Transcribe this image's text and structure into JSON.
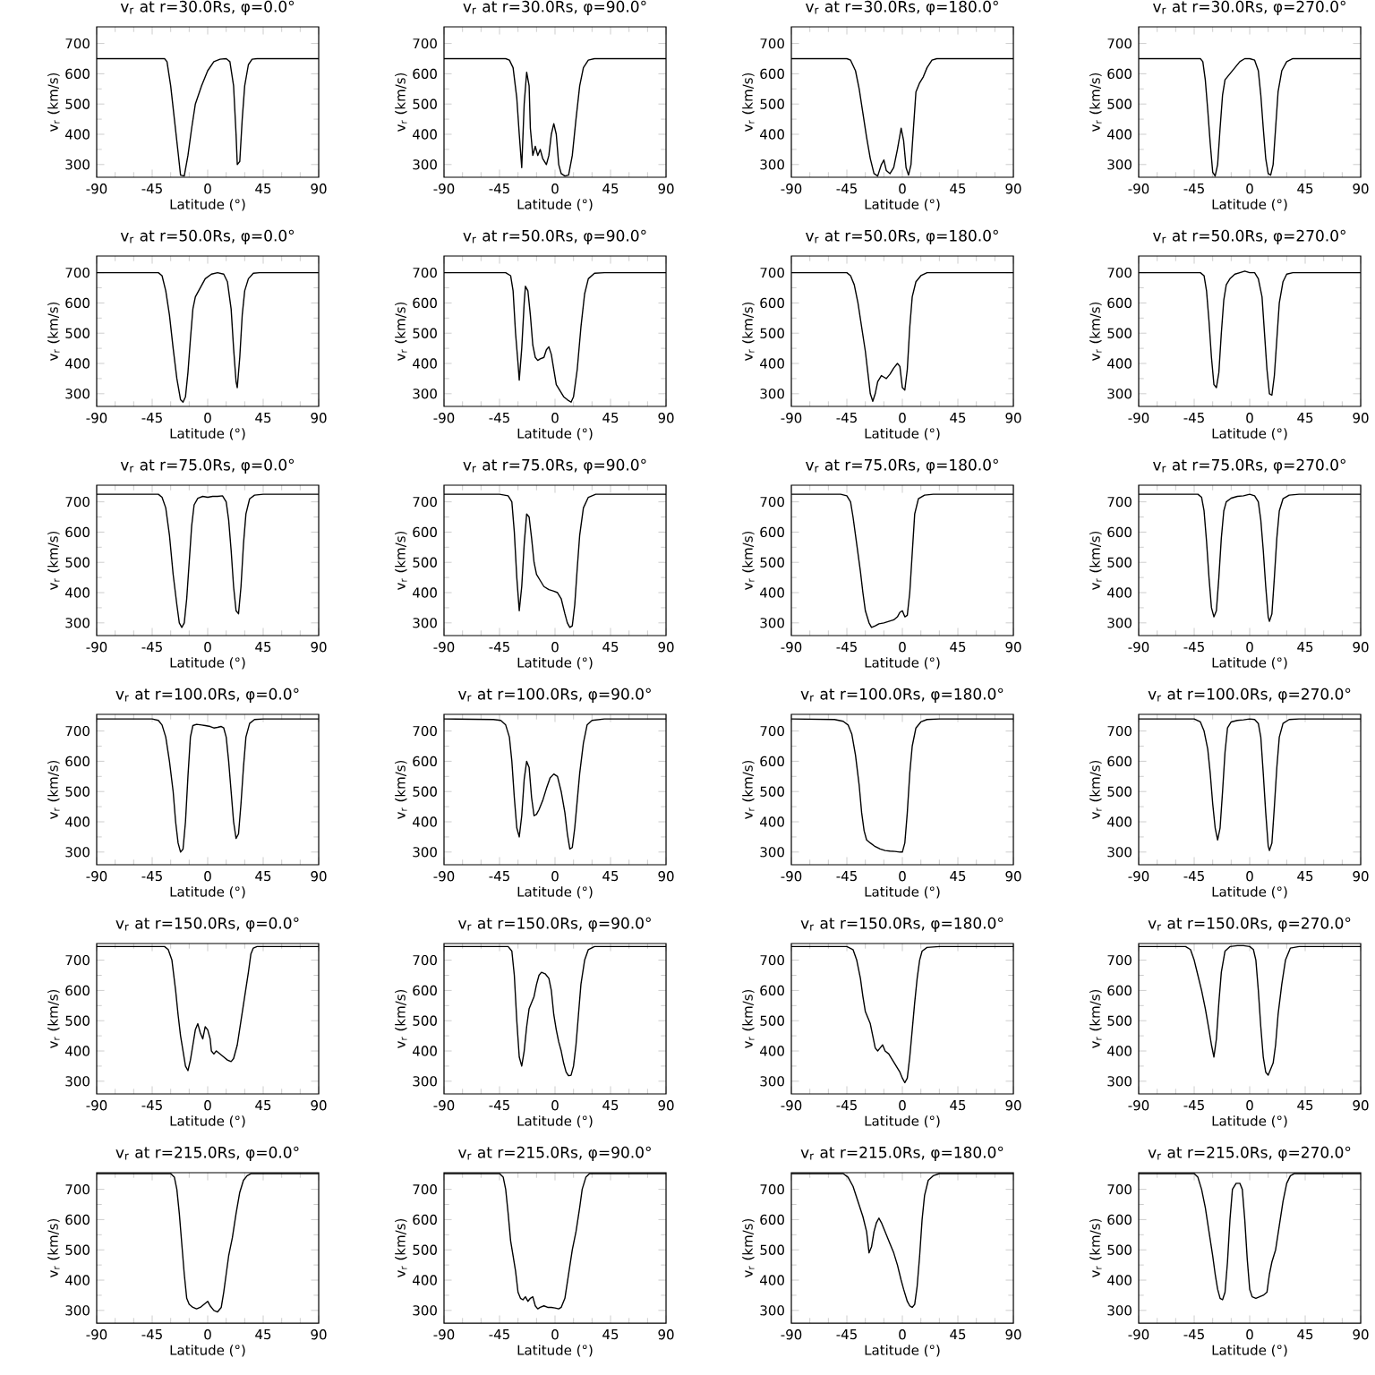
{
  "chart_data": [
    {
      "type": "line",
      "title": "v$_{r}$ at r=30.0Rs, φ=0.0°",
      "xlabel": "Latitude (°)",
      "ylabel": "v$_{r}$ (km/s)",
      "color": "#000000",
      "xlim": [
        -90,
        90
      ],
      "ylim": [
        258,
        755
      ],
      "xticks": [
        -90,
        -45,
        0,
        45,
        90
      ],
      "yticks": [
        300,
        400,
        500,
        600,
        700
      ],
      "x": [
        -90,
        -35,
        -33,
        -30,
        -27,
        -24,
        -22,
        -19,
        -16,
        -13,
        -10,
        -5,
        0,
        5,
        10,
        15,
        18,
        21,
        23,
        24,
        26,
        28,
        30,
        33,
        36,
        40,
        90
      ],
      "values": [
        650,
        650,
        640,
        560,
        450,
        340,
        265,
        262,
        330,
        420,
        500,
        560,
        610,
        640,
        648,
        650,
        640,
        560,
        400,
        300,
        310,
        450,
        560,
        630,
        648,
        650,
        650
      ]
    },
    {
      "type": "line",
      "title": "v$_{r}$ at r=30.0Rs, φ=90.0°",
      "xlabel": "Latitude (°)",
      "ylabel": "v$_{r}$ (km/s)",
      "color": "#000000",
      "xlim": [
        -90,
        90
      ],
      "ylim": [
        258,
        755
      ],
      "xticks": [
        -90,
        -45,
        0,
        45,
        90
      ],
      "yticks": [
        300,
        400,
        500,
        600,
        700
      ],
      "x": [
        -90,
        -40,
        -37,
        -34,
        -31,
        -29,
        -27,
        -25,
        -23,
        -21,
        -20,
        -18,
        -16,
        -14,
        -12,
        -10,
        -7,
        -5,
        -3,
        -1,
        1,
        3,
        5,
        8,
        11,
        14,
        17,
        20,
        23,
        27,
        32,
        90
      ],
      "values": [
        650,
        650,
        645,
        620,
        520,
        400,
        290,
        500,
        605,
        560,
        420,
        330,
        360,
        330,
        350,
        320,
        300,
        330,
        400,
        435,
        400,
        300,
        270,
        262,
        265,
        330,
        450,
        560,
        620,
        645,
        650,
        650
      ]
    },
    {
      "type": "line",
      "title": "v$_{r}$ at r=30.0Rs, φ=180.0°",
      "xlabel": "Latitude (°)",
      "ylabel": "v$_{r}$ (km/s)",
      "color": "#000000",
      "xlim": [
        -90,
        90
      ],
      "ylim": [
        258,
        755
      ],
      "xticks": [
        -90,
        -45,
        0,
        45,
        90
      ],
      "yticks": [
        300,
        400,
        500,
        600,
        700
      ],
      "x": [
        -90,
        -45,
        -42,
        -38,
        -35,
        -32,
        -29,
        -26,
        -23,
        -20,
        -17,
        -15,
        -13,
        -10,
        -7,
        -4,
        -1,
        1,
        3,
        5,
        7,
        9,
        11,
        14,
        17,
        20,
        24,
        28,
        90
      ],
      "values": [
        650,
        650,
        645,
        610,
        550,
        470,
        390,
        320,
        270,
        262,
        300,
        315,
        280,
        270,
        290,
        350,
        420,
        380,
        290,
        265,
        300,
        420,
        540,
        570,
        590,
        620,
        645,
        650,
        650
      ]
    },
    {
      "type": "line",
      "title": "v$_{r}$ at r=30.0Rs, φ=270.0°",
      "xlabel": "Latitude (°)",
      "ylabel": "v$_{r}$ (km/s)",
      "color": "#000000",
      "xlim": [
        -90,
        90
      ],
      "ylim": [
        258,
        755
      ],
      "xticks": [
        -90,
        -45,
        0,
        45,
        90
      ],
      "yticks": [
        300,
        400,
        500,
        600,
        700
      ],
      "x": [
        -90,
        -40,
        -38,
        -36,
        -34,
        -32,
        -30,
        -28,
        -26,
        -24,
        -22,
        -20,
        -16,
        -12,
        -8,
        -4,
        0,
        4,
        7,
        9,
        11,
        13,
        15,
        17,
        19,
        21,
        23,
        26,
        30,
        35,
        90
      ],
      "values": [
        650,
        650,
        640,
        580,
        480,
        370,
        275,
        262,
        300,
        420,
        530,
        580,
        600,
        620,
        640,
        650,
        650,
        645,
        610,
        530,
        420,
        320,
        270,
        265,
        300,
        420,
        540,
        610,
        640,
        650,
        650
      ]
    },
    {
      "type": "line",
      "title": "v$_{r}$ at r=50.0Rs, φ=0.0°",
      "xlabel": "Latitude (°)",
      "ylabel": "v$_{r}$ (km/s)",
      "color": "#000000",
      "xlim": [
        -90,
        90
      ],
      "ylim": [
        258,
        755
      ],
      "xticks": [
        -90,
        -45,
        0,
        45,
        90
      ],
      "yticks": [
        300,
        400,
        500,
        600,
        700
      ],
      "x": [
        -90,
        -40,
        -37,
        -34,
        -31,
        -28,
        -25,
        -22,
        -20,
        -18,
        -16,
        -14,
        -12,
        -10,
        -6,
        -2,
        3,
        8,
        13,
        16,
        19,
        21,
        23,
        24,
        26,
        28,
        30,
        33,
        37,
        42,
        90
      ],
      "values": [
        700,
        700,
        690,
        640,
        560,
        450,
        350,
        280,
        272,
        290,
        370,
        480,
        580,
        620,
        650,
        680,
        695,
        700,
        695,
        670,
        580,
        450,
        340,
        320,
        420,
        560,
        640,
        680,
        698,
        700,
        700
      ]
    },
    {
      "type": "line",
      "title": "v$_{r}$ at r=50.0Rs, φ=90.0°",
      "xlabel": "Latitude (°)",
      "ylabel": "v$_{r}$ (km/s)",
      "color": "#000000",
      "xlim": [
        -90,
        90
      ],
      "ylim": [
        258,
        755
      ],
      "xticks": [
        -90,
        -45,
        0,
        45,
        90
      ],
      "yticks": [
        300,
        400,
        500,
        600,
        700
      ],
      "x": [
        -90,
        -40,
        -36,
        -34,
        -32,
        -30,
        -29,
        -27,
        -25,
        -24,
        -22,
        -20,
        -18,
        -16,
        -14,
        -12,
        -9,
        -7,
        -5,
        -3,
        -1,
        1,
        4,
        7,
        10,
        13,
        15,
        18,
        21,
        24,
        27,
        32,
        40,
        90
      ],
      "values": [
        700,
        700,
        690,
        640,
        500,
        400,
        345,
        450,
        600,
        655,
        640,
        560,
        460,
        420,
        410,
        415,
        420,
        445,
        455,
        430,
        380,
        330,
        310,
        290,
        280,
        272,
        290,
        380,
        520,
        630,
        680,
        698,
        700,
        700
      ]
    },
    {
      "type": "line",
      "title": "v$_{r}$ at r=50.0Rs, φ=180.0°",
      "xlabel": "Latitude (°)",
      "ylabel": "v$_{r}$ (km/s)",
      "color": "#000000",
      "xlim": [
        -90,
        90
      ],
      "ylim": [
        258,
        755
      ],
      "xticks": [
        -90,
        -45,
        0,
        45,
        90
      ],
      "yticks": [
        300,
        400,
        500,
        600,
        700
      ],
      "x": [
        -90,
        -45,
        -42,
        -39,
        -36,
        -33,
        -30,
        -28,
        -26,
        -24,
        -22,
        -20,
        -17,
        -15,
        -13,
        -10,
        -7,
        -4,
        -2,
        0,
        2,
        4,
        6,
        8,
        11,
        15,
        20,
        90
      ],
      "values": [
        700,
        700,
        690,
        660,
        600,
        520,
        440,
        370,
        300,
        275,
        300,
        340,
        360,
        355,
        350,
        365,
        385,
        400,
        390,
        320,
        312,
        380,
        520,
        620,
        670,
        690,
        700,
        700
      ]
    },
    {
      "type": "line",
      "title": "v$_{r}$ at r=50.0Rs, φ=270.0°",
      "xlabel": "Latitude (°)",
      "ylabel": "v$_{r}$ (km/s)",
      "color": "#000000",
      "xlim": [
        -90,
        90
      ],
      "ylim": [
        258,
        755
      ],
      "xticks": [
        -90,
        -45,
        0,
        45,
        90
      ],
      "yticks": [
        300,
        400,
        500,
        600,
        700
      ],
      "x": [
        -90,
        -40,
        -37,
        -35,
        -33,
        -31,
        -29,
        -27,
        -25,
        -23,
        -21,
        -19,
        -16,
        -12,
        -8,
        -4,
        0,
        4,
        7,
        10,
        12,
        14,
        16,
        18,
        20,
        22,
        24,
        27,
        30,
        35,
        90
      ],
      "values": [
        700,
        700,
        690,
        640,
        540,
        420,
        330,
        320,
        370,
        500,
        610,
        660,
        680,
        695,
        700,
        705,
        700,
        700,
        680,
        620,
        500,
        380,
        300,
        295,
        360,
        480,
        600,
        670,
        695,
        700,
        700
      ]
    },
    {
      "type": "line",
      "title": "v$_{r}$ at r=75.0Rs, φ=0.0°",
      "xlabel": "Latitude (°)",
      "ylabel": "v$_{r}$ (km/s)",
      "color": "#000000",
      "xlim": [
        -90,
        90
      ],
      "ylim": [
        258,
        755
      ],
      "xticks": [
        -90,
        -45,
        0,
        45,
        90
      ],
      "yticks": [
        300,
        400,
        500,
        600,
        700
      ],
      "x": [
        -90,
        -40,
        -37,
        -34,
        -31,
        -28,
        -25,
        -23,
        -21,
        -19,
        -17,
        -15,
        -13,
        -11,
        -8,
        -4,
        0,
        4,
        8,
        12,
        15,
        17,
        19,
        21,
        23,
        25,
        27,
        29,
        31,
        34,
        38,
        45,
        90
      ],
      "values": [
        725,
        725,
        715,
        680,
        590,
        460,
        360,
        300,
        285,
        300,
        380,
        500,
        620,
        690,
        712,
        718,
        715,
        718,
        718,
        720,
        700,
        640,
        540,
        420,
        340,
        330,
        420,
        560,
        660,
        710,
        722,
        725,
        725
      ]
    },
    {
      "type": "line",
      "title": "v$_{r}$ at r=75.0Rs, φ=90.0°",
      "xlabel": "Latitude (°)",
      "ylabel": "v$_{r}$ (km/s)",
      "color": "#000000",
      "xlim": [
        -90,
        90
      ],
      "ylim": [
        258,
        755
      ],
      "xticks": [
        -90,
        -45,
        0,
        45,
        90
      ],
      "yticks": [
        300,
        400,
        500,
        600,
        700
      ],
      "x": [
        -90,
        -45,
        -38,
        -35,
        -33,
        -31,
        -29,
        -27,
        -25,
        -23,
        -21,
        -19,
        -17,
        -15,
        -12,
        -9,
        -5,
        -1,
        2,
        5,
        8,
        10,
        12,
        14,
        16,
        18,
        20,
        23,
        27,
        33,
        90
      ],
      "values": [
        725,
        725,
        720,
        700,
        600,
        450,
        340,
        420,
        560,
        660,
        650,
        580,
        500,
        460,
        440,
        420,
        410,
        405,
        400,
        380,
        330,
        300,
        285,
        290,
        360,
        480,
        590,
        680,
        715,
        725,
        725
      ]
    },
    {
      "type": "line",
      "title": "v$_{r}$ at r=75.0Rs, φ=180.0°",
      "xlabel": "Latitude (°)",
      "ylabel": "v$_{r}$ (km/s)",
      "color": "#000000",
      "xlim": [
        -90,
        90
      ],
      "ylim": [
        258,
        755
      ],
      "xticks": [
        -90,
        -45,
        0,
        45,
        90
      ],
      "yticks": [
        300,
        400,
        500,
        600,
        700
      ],
      "x": [
        -90,
        -50,
        -45,
        -42,
        -40,
        -37,
        -34,
        -32,
        -30,
        -27,
        -25,
        -22,
        -19,
        -15,
        -11,
        -7,
        -4,
        -2,
        0,
        2,
        4,
        6,
        8,
        10,
        13,
        18,
        25,
        90
      ],
      "values": [
        725,
        725,
        720,
        700,
        650,
        560,
        470,
        400,
        340,
        300,
        285,
        290,
        297,
        300,
        305,
        310,
        320,
        335,
        340,
        320,
        325,
        400,
        530,
        660,
        710,
        722,
        725,
        725
      ]
    },
    {
      "type": "line",
      "title": "v$_{r}$ at r=75.0Rs, φ=270.0°",
      "xlabel": "Latitude (°)",
      "ylabel": "v$_{r}$ (km/s)",
      "color": "#000000",
      "xlim": [
        -90,
        90
      ],
      "ylim": [
        258,
        755
      ],
      "xticks": [
        -90,
        -45,
        0,
        45,
        90
      ],
      "yticks": [
        300,
        400,
        500,
        600,
        700
      ],
      "x": [
        -90,
        -42,
        -39,
        -37,
        -35,
        -33,
        -31,
        -29,
        -27,
        -25,
        -23,
        -21,
        -19,
        -15,
        -10,
        -5,
        0,
        4,
        7,
        9,
        11,
        13,
        15,
        16,
        18,
        20,
        22,
        24,
        27,
        32,
        40,
        90
      ],
      "values": [
        725,
        725,
        715,
        670,
        570,
        450,
        350,
        320,
        340,
        450,
        580,
        670,
        700,
        712,
        718,
        720,
        725,
        720,
        700,
        640,
        540,
        420,
        320,
        305,
        330,
        450,
        580,
        670,
        710,
        722,
        725,
        725
      ]
    },
    {
      "type": "line",
      "title": "v$_{r}$ at r=100.0Rs, φ=0.0°",
      "xlabel": "Latitude (°)",
      "ylabel": "v$_{r}$ (km/s)",
      "color": "#000000",
      "xlim": [
        -90,
        90
      ],
      "ylim": [
        258,
        755
      ],
      "xticks": [
        -90,
        -45,
        0,
        45,
        90
      ],
      "yticks": [
        300,
        400,
        500,
        600,
        700
      ],
      "x": [
        -90,
        -45,
        -40,
        -37,
        -34,
        -31,
        -28,
        -26,
        -24,
        -22,
        -20,
        -18,
        -16,
        -14,
        -12,
        -9,
        -5,
        -2,
        2,
        5,
        8,
        11,
        13,
        15,
        17,
        19,
        21,
        23,
        25,
        27,
        29,
        31,
        34,
        38,
        45,
        90
      ],
      "values": [
        740,
        740,
        735,
        720,
        680,
        600,
        500,
        400,
        330,
        300,
        310,
        400,
        550,
        680,
        718,
        722,
        720,
        718,
        715,
        710,
        712,
        715,
        710,
        680,
        600,
        500,
        400,
        345,
        360,
        460,
        580,
        680,
        725,
        738,
        740,
        740
      ]
    },
    {
      "type": "line",
      "title": "v$_{r}$ at r=100.0Rs, φ=90.0°",
      "xlabel": "Latitude (°)",
      "ylabel": "v$_{r}$ (km/s)",
      "color": "#000000",
      "xlim": [
        -90,
        90
      ],
      "ylim": [
        258,
        755
      ],
      "xticks": [
        -90,
        -45,
        0,
        45,
        90
      ],
      "yticks": [
        300,
        400,
        500,
        600,
        700
      ],
      "x": [
        -90,
        -50,
        -44,
        -40,
        -37,
        -35,
        -33,
        -31,
        -29,
        -27,
        -25,
        -23,
        -21,
        -19,
        -17,
        -15,
        -13,
        -10,
        -7,
        -4,
        -1,
        2,
        5,
        8,
        10,
        12,
        14,
        16,
        18,
        20,
        23,
        26,
        30,
        40,
        90
      ],
      "values": [
        740,
        738,
        735,
        720,
        680,
        600,
        480,
        380,
        350,
        420,
        540,
        600,
        580,
        480,
        420,
        425,
        440,
        470,
        510,
        545,
        558,
        550,
        500,
        430,
        360,
        310,
        315,
        380,
        470,
        560,
        660,
        720,
        735,
        740,
        740
      ]
    },
    {
      "type": "line",
      "title": "v$_{r}$ at r=100.0Rs, φ=180.0°",
      "xlabel": "Latitude (°)",
      "ylabel": "v$_{r}$ (km/s)",
      "color": "#000000",
      "xlim": [
        -90,
        90
      ],
      "ylim": [
        258,
        755
      ],
      "xticks": [
        -90,
        -45,
        0,
        45,
        90
      ],
      "yticks": [
        300,
        400,
        500,
        600,
        700
      ],
      "x": [
        -90,
        -55,
        -48,
        -44,
        -41,
        -38,
        -35,
        -33,
        -31,
        -29,
        -26,
        -22,
        -18,
        -14,
        -10,
        -6,
        -2,
        0,
        2,
        4,
        6,
        8,
        11,
        15,
        20,
        30,
        90
      ],
      "values": [
        740,
        738,
        732,
        720,
        690,
        620,
        520,
        430,
        370,
        340,
        330,
        318,
        310,
        305,
        303,
        302,
        300,
        300,
        330,
        430,
        560,
        650,
        710,
        730,
        738,
        740,
        740
      ]
    },
    {
      "type": "line",
      "title": "v$_{r}$ at r=100.0Rs, φ=270.0°",
      "xlabel": "Latitude (°)",
      "ylabel": "v$_{r}$ (km/s)",
      "color": "#000000",
      "xlim": [
        -90,
        90
      ],
      "ylim": [
        258,
        755
      ],
      "xticks": [
        -90,
        -45,
        0,
        45,
        90
      ],
      "yticks": [
        300,
        400,
        500,
        600,
        700
      ],
      "x": [
        -90,
        -45,
        -40,
        -37,
        -34,
        -32,
        -30,
        -28,
        -26,
        -24,
        -22,
        -20,
        -18,
        -15,
        -10,
        -5,
        0,
        4,
        7,
        9,
        11,
        13,
        15,
        16,
        18,
        20,
        22,
        24,
        27,
        32,
        40,
        90
      ],
      "values": [
        740,
        740,
        730,
        700,
        640,
        560,
        460,
        380,
        340,
        380,
        500,
        630,
        710,
        730,
        735,
        737,
        740,
        738,
        725,
        680,
        560,
        430,
        320,
        305,
        330,
        450,
        580,
        680,
        725,
        738,
        740,
        740
      ]
    },
    {
      "type": "line",
      "title": "v$_{r}$ at r=150.0Rs, φ=0.0°",
      "xlabel": "Latitude (°)",
      "ylabel": "v$_{r}$ (km/s)",
      "color": "#000000",
      "xlim": [
        -90,
        90
      ],
      "ylim": [
        258,
        755
      ],
      "xticks": [
        -90,
        -45,
        0,
        45,
        90
      ],
      "yticks": [
        300,
        400,
        500,
        600,
        700
      ],
      "x": [
        -90,
        -35,
        -32,
        -29,
        -26,
        -24,
        -22,
        -20,
        -18,
        -16,
        -14,
        -12,
        -10,
        -8,
        -6,
        -4,
        -2,
        0,
        2,
        3,
        5,
        7,
        10,
        13,
        16,
        19,
        21,
        24,
        27,
        30,
        33,
        35,
        37,
        40,
        90
      ],
      "values": [
        745,
        745,
        735,
        700,
        600,
        520,
        450,
        400,
        350,
        335,
        370,
        420,
        470,
        490,
        460,
        440,
        480,
        470,
        440,
        400,
        390,
        400,
        390,
        380,
        370,
        365,
        375,
        420,
        500,
        580,
        660,
        720,
        740,
        745,
        745
      ]
    },
    {
      "type": "line",
      "title": "v$_{r}$ at r=150.0Rs, φ=90.0°",
      "xlabel": "Latitude (°)",
      "ylabel": "v$_{r}$ (km/s)",
      "color": "#000000",
      "xlim": [
        -90,
        90
      ],
      "ylim": [
        258,
        755
      ],
      "xticks": [
        -90,
        -45,
        0,
        45,
        90
      ],
      "yticks": [
        300,
        400,
        500,
        600,
        700
      ],
      "x": [
        -90,
        -38,
        -35,
        -33,
        -31,
        -29,
        -27,
        -25,
        -23,
        -21,
        -19,
        -17,
        -15,
        -13,
        -11,
        -8,
        -5,
        -3,
        -1,
        1,
        3,
        5,
        7,
        9,
        11,
        13,
        15,
        17,
        19,
        21,
        24,
        27,
        32,
        90
      ],
      "values": [
        745,
        745,
        730,
        650,
        500,
        380,
        350,
        400,
        480,
        540,
        560,
        580,
        620,
        650,
        660,
        655,
        640,
        600,
        520,
        470,
        430,
        400,
        360,
        330,
        318,
        320,
        350,
        420,
        520,
        620,
        700,
        735,
        745,
        745
      ]
    },
    {
      "type": "line",
      "title": "v$_{r}$ at r=150.0Rs, φ=180.0°",
      "xlabel": "Latitude (°)",
      "ylabel": "v$_{r}$ (km/s)",
      "color": "#000000",
      "xlim": [
        -90,
        90
      ],
      "ylim": [
        258,
        755
      ],
      "xticks": [
        -90,
        -45,
        0,
        45,
        90
      ],
      "yticks": [
        300,
        400,
        500,
        600,
        700
      ],
      "x": [
        -90,
        -45,
        -40,
        -37,
        -34,
        -32,
        -30,
        -28,
        -26,
        -24,
        -22,
        -20,
        -18,
        -16,
        -14,
        -11,
        -8,
        -5,
        -2,
        0,
        2,
        4,
        6,
        8,
        10,
        12,
        14,
        16,
        20,
        30,
        90
      ],
      "values": [
        745,
        745,
        735,
        700,
        640,
        580,
        530,
        510,
        490,
        450,
        410,
        400,
        410,
        420,
        400,
        390,
        370,
        350,
        330,
        310,
        295,
        310,
        380,
        470,
        560,
        640,
        700,
        730,
        742,
        745,
        745
      ]
    },
    {
      "type": "line",
      "title": "v$_{r}$ at r=150.0Rs, φ=270.0°",
      "xlabel": "Latitude (°)",
      "ylabel": "v$_{r}$ (km/s)",
      "color": "#000000",
      "xlim": [
        -90,
        90
      ],
      "ylim": [
        258,
        755
      ],
      "xticks": [
        -90,
        -45,
        0,
        45,
        90
      ],
      "yticks": [
        300,
        400,
        500,
        600,
        700
      ],
      "x": [
        -90,
        -52,
        -48,
        -45,
        -42,
        -39,
        -36,
        -33,
        -31,
        -29,
        -27,
        -25,
        -23,
        -20,
        -16,
        -10,
        -5,
        0,
        3,
        5,
        7,
        9,
        11,
        13,
        15,
        17,
        19,
        21,
        23,
        26,
        29,
        33,
        40,
        90
      ],
      "values": [
        745,
        745,
        735,
        700,
        650,
        600,
        540,
        470,
        420,
        380,
        440,
        560,
        660,
        730,
        745,
        748,
        748,
        745,
        735,
        700,
        600,
        480,
        380,
        330,
        320,
        340,
        360,
        420,
        520,
        620,
        700,
        740,
        745,
        745
      ]
    },
    {
      "type": "line",
      "title": "v$_{r}$ at r=215.0Rs, φ=0.0°",
      "xlabel": "Latitude (°)",
      "ylabel": "v$_{r}$ (km/s)",
      "color": "#000000",
      "xlim": [
        -90,
        90
      ],
      "ylim": [
        258,
        755
      ],
      "xticks": [
        -90,
        -45,
        0,
        45,
        90
      ],
      "yticks": [
        300,
        400,
        500,
        600,
        700
      ],
      "x": [
        -90,
        -30,
        -27,
        -25,
        -23,
        -21,
        -19,
        -17,
        -15,
        -12,
        -9,
        -6,
        -3,
        0,
        2,
        5,
        8,
        11,
        13,
        15,
        17,
        20,
        23,
        26,
        29,
        32,
        35,
        90
      ],
      "values": [
        752,
        752,
        740,
        700,
        620,
        520,
        420,
        340,
        320,
        310,
        305,
        310,
        320,
        330,
        315,
        300,
        295,
        310,
        360,
        420,
        480,
        540,
        620,
        690,
        730,
        745,
        752,
        752
      ]
    },
    {
      "type": "line",
      "title": "v$_{r}$ at r=215.0Rs, φ=90.0°",
      "xlabel": "Latitude (°)",
      "ylabel": "v$_{r}$ (km/s)",
      "color": "#000000",
      "xlim": [
        -90,
        90
      ],
      "ylim": [
        258,
        755
      ],
      "xticks": [
        -90,
        -45,
        0,
        45,
        90
      ],
      "yticks": [
        300,
        400,
        500,
        600,
        700
      ],
      "x": [
        -90,
        -45,
        -42,
        -40,
        -38,
        -36,
        -34,
        -32,
        -30,
        -28,
        -26,
        -24,
        -22,
        -20,
        -18,
        -16,
        -14,
        -12,
        -9,
        -6,
        -3,
        0,
        3,
        5,
        8,
        11,
        14,
        17,
        20,
        22,
        25,
        28,
        90
      ],
      "values": [
        752,
        752,
        740,
        700,
        620,
        530,
        480,
        430,
        360,
        340,
        335,
        345,
        330,
        340,
        345,
        315,
        305,
        310,
        315,
        310,
        310,
        308,
        305,
        310,
        340,
        420,
        500,
        560,
        640,
        700,
        740,
        752,
        752
      ]
    },
    {
      "type": "line",
      "title": "v$_{r}$ at r=215.0Rs, φ=180.0°",
      "xlabel": "Latitude (°)",
      "ylabel": "v$_{r}$ (km/s)",
      "color": "#000000",
      "xlim": [
        -90,
        90
      ],
      "ylim": [
        258,
        755
      ],
      "xticks": [
        -90,
        -45,
        0,
        45,
        90
      ],
      "yticks": [
        300,
        400,
        500,
        600,
        700
      ],
      "x": [
        -90,
        -48,
        -44,
        -40,
        -36,
        -32,
        -29,
        -27,
        -25,
        -23,
        -21,
        -19,
        -17,
        -15,
        -13,
        -10,
        -7,
        -4,
        -1,
        1,
        4,
        6,
        8,
        10,
        12,
        14,
        16,
        18,
        21,
        25,
        30,
        90
      ],
      "values": [
        752,
        752,
        740,
        710,
        660,
        610,
        560,
        490,
        510,
        560,
        590,
        605,
        590,
        570,
        550,
        520,
        490,
        450,
        400,
        370,
        330,
        315,
        310,
        320,
        380,
        480,
        600,
        680,
        730,
        745,
        752,
        752
      ]
    },
    {
      "type": "line",
      "title": "v$_{r}$ at r=215.0Rs, φ=270.0°",
      "xlabel": "Latitude (°)",
      "ylabel": "v$_{r}$ (km/s)",
      "color": "#000000",
      "xlim": [
        -90,
        90
      ],
      "ylim": [
        258,
        755
      ],
      "xticks": [
        -90,
        -45,
        0,
        45,
        90
      ],
      "yticks": [
        300,
        400,
        500,
        600,
        700
      ],
      "x": [
        -90,
        -45,
        -42,
        -39,
        -36,
        -33,
        -30,
        -28,
        -26,
        -24,
        -22,
        -20,
        -18,
        -16,
        -14,
        -11,
        -8,
        -6,
        -4,
        -2,
        0,
        2,
        5,
        8,
        11,
        14,
        16,
        18,
        21,
        24,
        27,
        30,
        33,
        36,
        90
      ],
      "values": [
        752,
        752,
        740,
        700,
        640,
        560,
        480,
        420,
        370,
        340,
        335,
        360,
        460,
        600,
        700,
        720,
        720,
        700,
        600,
        470,
        370,
        345,
        340,
        345,
        350,
        360,
        420,
        460,
        500,
        580,
        660,
        720,
        745,
        752,
        752
      ]
    }
  ]
}
